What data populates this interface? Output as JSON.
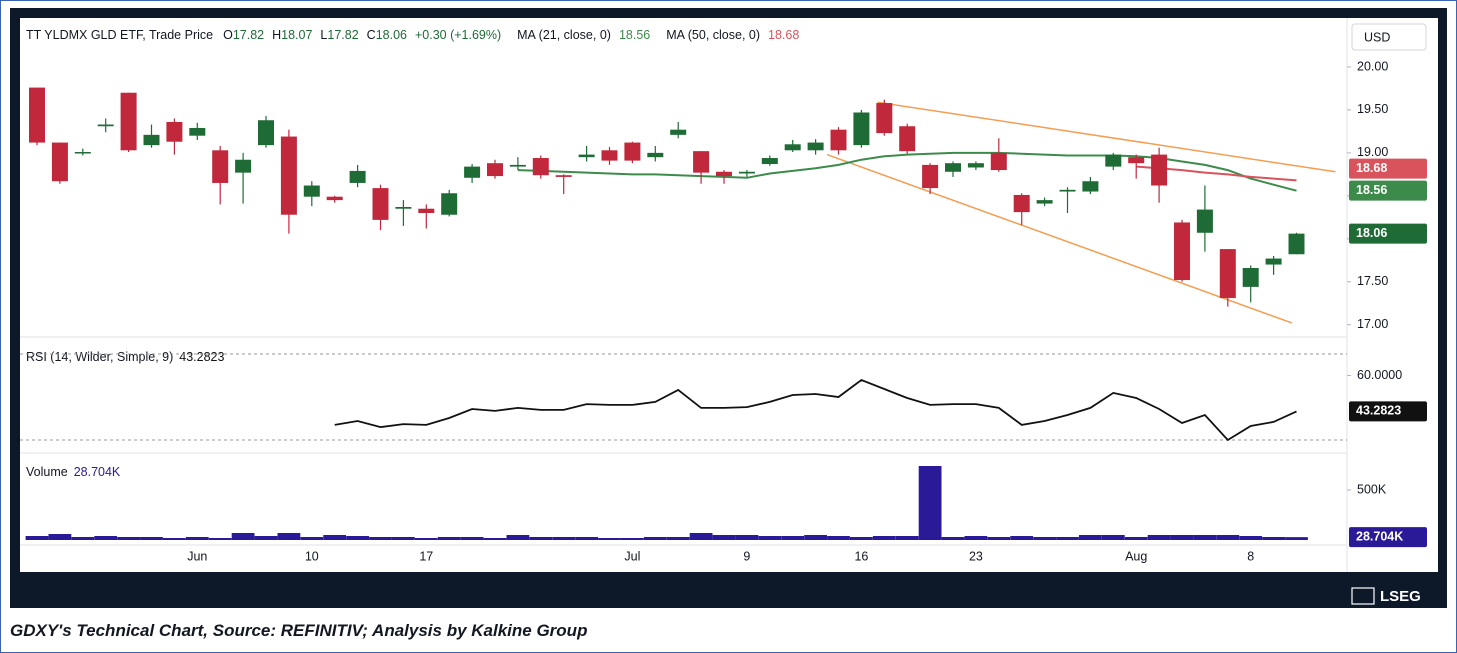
{
  "chart_data": [
    {
      "type": "candlestick",
      "title": "TT YLDMX GLD ETF, Trade Price",
      "ohlc_prefixes": [
        "O",
        "H",
        "L",
        "C"
      ],
      "change": "+0.30 (+1.69%)",
      "currency": "USD",
      "up_color": "#1f6b36",
      "down_color": "#c1283b",
      "open": [
        19.76,
        19.12,
        19.0,
        19.31,
        19.7,
        19.09,
        19.36,
        19.2,
        19.03,
        18.77,
        19.09,
        19.19,
        18.49,
        18.49,
        18.65,
        18.59,
        18.35,
        18.35,
        18.28,
        18.71,
        18.88,
        18.84,
        18.94,
        18.74,
        18.95,
        19.03,
        19.12,
        18.95,
        19.21,
        19.02,
        18.78,
        18.76,
        18.87,
        19.03,
        19.03,
        19.27,
        19.09,
        19.58,
        19.31,
        18.86,
        18.78,
        18.83,
        19.0,
        18.51,
        18.41,
        18.55,
        18.55,
        18.84,
        18.95,
        18.98,
        18.19,
        18.07,
        17.88,
        17.44,
        17.7,
        17.82
      ],
      "high": [
        19.76,
        19.12,
        19.05,
        19.4,
        19.7,
        19.33,
        19.4,
        19.35,
        19.08,
        19.0,
        19.43,
        19.27,
        18.67,
        18.5,
        18.86,
        18.63,
        18.45,
        18.4,
        18.57,
        18.87,
        18.92,
        18.95,
        18.97,
        18.75,
        19.08,
        19.07,
        19.13,
        19.08,
        19.36,
        19.02,
        18.8,
        18.8,
        18.97,
        19.15,
        19.16,
        19.3,
        19.5,
        19.62,
        19.34,
        18.88,
        18.9,
        18.9,
        19.17,
        18.53,
        18.48,
        18.6,
        18.72,
        19.0,
        18.98,
        19.06,
        18.22,
        18.62,
        17.88,
        17.69,
        17.8,
        18.07
      ],
      "low": [
        19.09,
        18.64,
        18.97,
        19.24,
        19.01,
        19.06,
        18.98,
        19.15,
        18.4,
        18.41,
        19.06,
        18.06,
        18.38,
        18.42,
        18.6,
        18.1,
        18.15,
        18.12,
        18.26,
        18.65,
        18.7,
        18.8,
        18.7,
        18.52,
        18.9,
        18.86,
        18.88,
        18.9,
        19.17,
        18.64,
        18.64,
        18.72,
        18.85,
        19.01,
        18.98,
        18.98,
        19.06,
        19.2,
        18.99,
        18.52,
        18.72,
        18.8,
        18.78,
        18.16,
        18.38,
        18.3,
        18.52,
        18.8,
        18.7,
        18.42,
        17.5,
        17.85,
        17.21,
        17.26,
        17.58,
        17.82
      ],
      "close": [
        19.12,
        18.67,
        19.01,
        19.33,
        19.03,
        19.21,
        19.13,
        19.29,
        18.65,
        18.92,
        19.38,
        18.28,
        18.62,
        18.45,
        18.79,
        18.22,
        18.37,
        18.3,
        18.53,
        18.84,
        18.73,
        18.86,
        18.74,
        18.72,
        18.98,
        18.91,
        18.91,
        19.0,
        19.27,
        18.77,
        18.73,
        18.78,
        18.94,
        19.1,
        19.12,
        19.03,
        19.47,
        19.23,
        19.02,
        18.59,
        18.88,
        18.88,
        18.8,
        18.31,
        18.45,
        18.57,
        18.67,
        18.98,
        18.88,
        18.62,
        17.52,
        18.34,
        17.31,
        17.66,
        17.77,
        18.06
      ],
      "series": [
        {
          "name": "MA (21, close, 0)",
          "color": "#3d8b4b",
          "values": [
            null,
            null,
            null,
            null,
            null,
            null,
            null,
            null,
            null,
            null,
            null,
            null,
            null,
            null,
            null,
            null,
            null,
            null,
            null,
            null,
            null,
            18.8,
            18.79,
            18.78,
            18.77,
            18.76,
            18.75,
            18.75,
            18.74,
            18.73,
            18.72,
            18.71,
            18.76,
            18.79,
            18.82,
            18.86,
            18.92,
            18.96,
            18.98,
            18.99,
            19.0,
            19.0,
            19.0,
            18.99,
            18.98,
            18.97,
            18.97,
            18.97,
            18.96,
            18.94,
            18.9,
            18.86,
            18.8,
            18.7,
            18.63,
            18.56
          ]
        },
        {
          "name": "MA (50, close, 0)",
          "color": "#d9535c",
          "values": [
            null,
            null,
            null,
            null,
            null,
            null,
            null,
            null,
            null,
            null,
            null,
            null,
            null,
            null,
            null,
            null,
            null,
            null,
            null,
            null,
            null,
            null,
            null,
            null,
            null,
            null,
            null,
            null,
            null,
            null,
            null,
            null,
            null,
            null,
            null,
            null,
            null,
            null,
            null,
            null,
            null,
            null,
            null,
            null,
            null,
            null,
            null,
            null,
            18.84,
            18.82,
            18.8,
            18.77,
            18.75,
            18.72,
            18.7,
            18.68
          ]
        }
      ],
      "trendlines": [
        {
          "color": "#f59d52",
          "x": [
            36.7,
            56.7
          ],
          "values": [
            19.59,
            18.78
          ]
        },
        {
          "color": "#f59d52",
          "x": [
            34.5,
            54.8
          ],
          "values": [
            18.98,
            17.02
          ]
        }
      ],
      "ylim": [
        16.88,
        20.57
      ],
      "yticks": [
        {
          "value": 17,
          "label": "17.00"
        },
        {
          "value": 17.5,
          "label": "17.50"
        },
        {
          "value": 18,
          "label": "18.00"
        },
        {
          "value": 18.5,
          "label": "18.50"
        },
        {
          "value": 19,
          "label": "19.00"
        },
        {
          "value": 19.5,
          "label": "19.50"
        },
        {
          "value": 20,
          "label": "20.00"
        }
      ]
    },
    {
      "type": "line",
      "title": "RSI (14, Wilder, Simple, 9)",
      "color": "#111111",
      "values": [
        null,
        null,
        null,
        null,
        null,
        null,
        null,
        null,
        null,
        null,
        null,
        null,
        null,
        37.0,
        38.8,
        36.0,
        37.4,
        37.0,
        40.2,
        44.4,
        43.5,
        44.9,
        44.0,
        44.0,
        46.7,
        46.3,
        46.3,
        47.7,
        53.3,
        44.9,
        44.9,
        45.3,
        47.7,
        50.9,
        51.4,
        50.0,
        57.9,
        53.7,
        49.5,
        46.3,
        46.7,
        46.7,
        44.9,
        37.0,
        38.8,
        41.6,
        44.9,
        51.9,
        49.5,
        44.4,
        37.9,
        41.6,
        30.0,
        36.5,
        38.4,
        43.2823
      ],
      "guides": [
        70,
        30
      ],
      "ylim": [
        24.4,
        76.5
      ],
      "yticks": [
        {
          "value": 60,
          "label": "60.0000"
        }
      ]
    },
    {
      "type": "bar",
      "title": "Volume",
      "color": "#2b1a98",
      "categories": [
        null,
        null,
        null,
        null,
        null,
        null,
        null,
        "Jun",
        null,
        null,
        null,
        null,
        "10",
        null,
        null,
        null,
        null,
        "17",
        null,
        null,
        null,
        null,
        null,
        null,
        null,
        null,
        "Jul",
        null,
        null,
        null,
        null,
        "9",
        null,
        null,
        null,
        null,
        "16",
        null,
        null,
        null,
        null,
        "23",
        null,
        null,
        null,
        null,
        null,
        null,
        "Aug",
        null,
        null,
        null,
        null,
        "8",
        null,
        null
      ],
      "values": [
        40000,
        60000,
        30000,
        40000,
        30000,
        30000,
        20000,
        30000,
        20000,
        70000,
        40000,
        70000,
        30000,
        50000,
        40000,
        30000,
        30000,
        20000,
        30000,
        30000,
        20000,
        50000,
        30000,
        30000,
        30000,
        20000,
        20000,
        30000,
        30000,
        70000,
        50000,
        50000,
        40000,
        40000,
        50000,
        40000,
        30000,
        40000,
        40000,
        740000,
        30000,
        40000,
        30000,
        40000,
        30000,
        30000,
        50000,
        50000,
        30000,
        50000,
        50000,
        50000,
        50000,
        40000,
        30000,
        28704
      ],
      "value_labels": [
        null,
        null,
        null,
        null,
        null,
        null,
        null,
        null,
        null,
        null,
        null,
        null,
        null,
        null,
        null,
        null,
        null,
        null,
        null,
        null,
        null,
        null,
        null,
        null,
        null,
        null,
        null,
        null,
        null,
        null,
        null,
        null,
        null,
        null,
        null,
        null,
        null,
        null,
        null,
        null,
        null,
        null,
        null,
        null,
        null,
        null,
        null,
        null,
        null,
        null,
        null,
        null,
        null,
        null,
        null,
        "28.704K"
      ],
      "ylim": [
        0,
        850000
      ],
      "yticks": [
        {
          "value": 500000,
          "label": "500K"
        }
      ]
    }
  ],
  "footer": {
    "brand": "LSEG",
    "caption": "GDXY's Technical Chart, Source: REFINITIV; Analysis by Kalkine Group"
  }
}
